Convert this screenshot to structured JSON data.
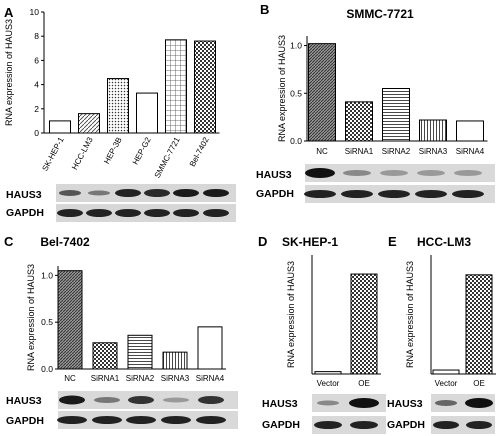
{
  "figure": {
    "panels": [
      {
        "id": "A",
        "letter": "A",
        "title": ""
      },
      {
        "id": "B",
        "letter": "B",
        "title": "SMMC-7721"
      },
      {
        "id": "C",
        "letter": "C",
        "title": "Bel-7402"
      },
      {
        "id": "D",
        "letter": "D",
        "title": "SK-HEP-1"
      },
      {
        "id": "E",
        "letter": "E",
        "title": "HCC-LM3"
      }
    ],
    "blot_labels": {
      "target": "HAUS3",
      "control": "GAPDH"
    }
  },
  "chart_data": [
    {
      "panel": "A",
      "type": "bar",
      "title": "",
      "xlabel": "",
      "ylabel": "RNA expression of HAUS3",
      "categories": [
        "SK-HEP-1",
        "HCC-LM3",
        "HEP-3B",
        "HEP-G2",
        "SMMC-7721",
        "Bel-7402"
      ],
      "values": [
        1.0,
        1.6,
        4.5,
        3.3,
        7.7,
        7.6
      ],
      "patterns": [
        "blank",
        "lines",
        "dots",
        "blank",
        "grid",
        "checks"
      ],
      "ylim": [
        0,
        10
      ],
      "yticks": [
        "0",
        "2",
        "4",
        "6",
        "8",
        "10"
      ],
      "xlabel_rotation": -62
    },
    {
      "panel": "B",
      "type": "bar",
      "title": "SMMC-7721",
      "xlabel": "",
      "ylabel": "RNA expression of HAUS3",
      "categories": [
        "NC",
        "SiRNA1",
        "SiRNA2",
        "SiRNA3",
        "SiRNA4"
      ],
      "values": [
        1.02,
        0.41,
        0.55,
        0.22,
        0.21
      ],
      "patterns": [
        "stripes",
        "checks",
        "horiz",
        "vert",
        "blank"
      ],
      "ylim": [
        0,
        1.1
      ],
      "yticks": [
        "0.0",
        "0.5",
        "1.0"
      ]
    },
    {
      "panel": "C",
      "type": "bar",
      "title": "Bel-7402",
      "xlabel": "",
      "ylabel": "RNA expression of HAUS3",
      "categories": [
        "NC",
        "SiRNA1",
        "SiRNA2",
        "SiRNA3",
        "SiRNA4"
      ],
      "values": [
        1.05,
        0.28,
        0.36,
        0.18,
        0.45
      ],
      "patterns": [
        "stripes",
        "checks",
        "horiz",
        "vert",
        "blank"
      ],
      "ylim": [
        0,
        1.1
      ],
      "yticks": [
        "0.0",
        "0.5",
        "1.0"
      ]
    },
    {
      "panel": "D",
      "type": "bar",
      "title": "SK-HEP-1",
      "xlabel": "",
      "ylabel": "RNA expression of HAUS3",
      "categories": [
        "Vector",
        "OE"
      ],
      "values": [
        1.0,
        42
      ],
      "patterns": [
        "blank",
        "checks"
      ],
      "ylim": [
        0,
        50
      ],
      "yticks": []
    },
    {
      "panel": "E",
      "type": "bar",
      "title": "HCC-LM3",
      "xlabel": "",
      "ylabel": "RNA expression of HAUS3",
      "categories": [
        "Vector",
        "OE"
      ],
      "values": [
        1.0,
        25
      ],
      "patterns": [
        "blank",
        "checks"
      ],
      "ylim": [
        0,
        30
      ],
      "yticks": []
    }
  ]
}
